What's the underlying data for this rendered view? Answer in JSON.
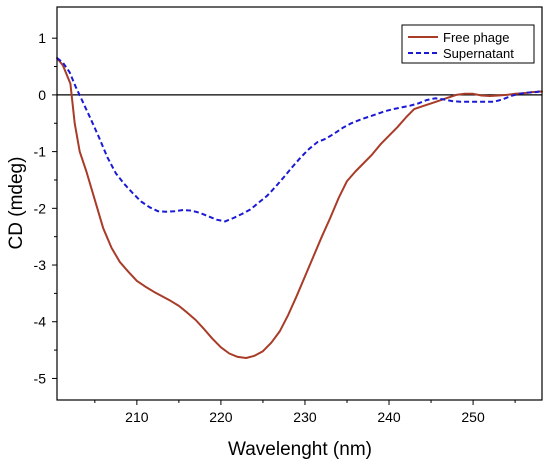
{
  "chart_data": {
    "type": "line",
    "xlabel": "Wavelenght (nm)",
    "ylabel": "CD (mdeg)",
    "xlim": [
      200.5,
      258.2
    ],
    "ylim": [
      -5.38,
      1.55
    ],
    "x_ticks": [
      210,
      220,
      230,
      240,
      250
    ],
    "y_ticks": [
      1,
      0,
      -1,
      -2,
      -3,
      -4,
      -5
    ],
    "zero_line": true,
    "grid": false,
    "legend": {
      "placement": "top-right",
      "entries": [
        "Free phage",
        "Supernatant"
      ]
    },
    "series": [
      {
        "name": "Free phage",
        "color": "#a83c28",
        "style": "solid",
        "points": [
          [
            200.5,
            0.65
          ],
          [
            201.2,
            0.52
          ],
          [
            202.1,
            0.2
          ],
          [
            202.6,
            -0.5
          ],
          [
            203.2,
            -1.0
          ],
          [
            204.0,
            -1.35
          ],
          [
            205.0,
            -1.85
          ],
          [
            206.0,
            -2.35
          ],
          [
            207.0,
            -2.7
          ],
          [
            208.0,
            -2.95
          ],
          [
            209.0,
            -3.12
          ],
          [
            210.0,
            -3.28
          ],
          [
            211.0,
            -3.38
          ],
          [
            212.0,
            -3.47
          ],
          [
            213.0,
            -3.55
          ],
          [
            214.0,
            -3.63
          ],
          [
            215.0,
            -3.72
          ],
          [
            216.0,
            -3.84
          ],
          [
            217.0,
            -3.97
          ],
          [
            218.0,
            -4.13
          ],
          [
            219.0,
            -4.3
          ],
          [
            220.0,
            -4.45
          ],
          [
            221.0,
            -4.56
          ],
          [
            222.0,
            -4.62
          ],
          [
            223.0,
            -4.64
          ],
          [
            224.0,
            -4.6
          ],
          [
            225.0,
            -4.52
          ],
          [
            226.0,
            -4.37
          ],
          [
            227.0,
            -4.17
          ],
          [
            228.0,
            -3.88
          ],
          [
            229.0,
            -3.55
          ],
          [
            230.0,
            -3.2
          ],
          [
            231.0,
            -2.85
          ],
          [
            232.0,
            -2.5
          ],
          [
            233.0,
            -2.17
          ],
          [
            234.0,
            -1.82
          ],
          [
            235.0,
            -1.52
          ],
          [
            236.0,
            -1.35
          ],
          [
            237.0,
            -1.2
          ],
          [
            238.0,
            -1.05
          ],
          [
            239.0,
            -0.87
          ],
          [
            240.0,
            -0.72
          ],
          [
            241.0,
            -0.57
          ],
          [
            242.0,
            -0.4
          ],
          [
            243.0,
            -0.25
          ],
          [
            244.0,
            -0.2
          ],
          [
            245.0,
            -0.15
          ],
          [
            246.0,
            -0.1
          ],
          [
            247.0,
            -0.05
          ],
          [
            248.0,
            0.0
          ],
          [
            249.0,
            0.02
          ],
          [
            250.0,
            0.02
          ],
          [
            251.0,
            -0.01
          ],
          [
            252.0,
            -0.02
          ],
          [
            253.0,
            -0.01
          ],
          [
            254.0,
            0.0
          ],
          [
            255.0,
            0.02
          ],
          [
            256.0,
            0.03
          ],
          [
            257.0,
            0.05
          ],
          [
            258.2,
            0.06
          ]
        ]
      },
      {
        "name": "Supernatant",
        "color": "#1a1ad6",
        "style": "dashed",
        "points": [
          [
            200.5,
            0.65
          ],
          [
            201.2,
            0.57
          ],
          [
            202.0,
            0.4
          ],
          [
            202.7,
            0.15
          ],
          [
            203.5,
            -0.1
          ],
          [
            204.5,
            -0.42
          ],
          [
            205.5,
            -0.75
          ],
          [
            206.5,
            -1.1
          ],
          [
            207.5,
            -1.38
          ],
          [
            208.5,
            -1.57
          ],
          [
            209.5,
            -1.73
          ],
          [
            210.5,
            -1.88
          ],
          [
            211.5,
            -1.98
          ],
          [
            212.5,
            -2.05
          ],
          [
            213.5,
            -2.06
          ],
          [
            214.5,
            -2.05
          ],
          [
            215.5,
            -2.03
          ],
          [
            216.5,
            -2.04
          ],
          [
            217.5,
            -2.08
          ],
          [
            218.5,
            -2.14
          ],
          [
            219.5,
            -2.2
          ],
          [
            220.5,
            -2.23
          ],
          [
            221.5,
            -2.17
          ],
          [
            222.5,
            -2.1
          ],
          [
            223.5,
            -2.02
          ],
          [
            224.5,
            -1.9
          ],
          [
            225.5,
            -1.78
          ],
          [
            226.5,
            -1.62
          ],
          [
            227.5,
            -1.45
          ],
          [
            228.5,
            -1.27
          ],
          [
            229.5,
            -1.1
          ],
          [
            230.5,
            -0.95
          ],
          [
            231.5,
            -0.83
          ],
          [
            232.5,
            -0.77
          ],
          [
            233.5,
            -0.68
          ],
          [
            234.5,
            -0.58
          ],
          [
            235.5,
            -0.5
          ],
          [
            236.5,
            -0.44
          ],
          [
            237.5,
            -0.39
          ],
          [
            238.5,
            -0.34
          ],
          [
            239.5,
            -0.29
          ],
          [
            240.5,
            -0.25
          ],
          [
            241.5,
            -0.22
          ],
          [
            242.5,
            -0.19
          ],
          [
            243.5,
            -0.15
          ],
          [
            244.5,
            -0.09
          ],
          [
            245.5,
            -0.06
          ],
          [
            246.5,
            -0.08
          ],
          [
            247.5,
            -0.11
          ],
          [
            248.5,
            -0.12
          ],
          [
            249.5,
            -0.12
          ],
          [
            250.5,
            -0.12
          ],
          [
            251.5,
            -0.12
          ],
          [
            252.5,
            -0.12
          ],
          [
            253.5,
            -0.08
          ],
          [
            254.5,
            -0.02
          ],
          [
            255.5,
            0.02
          ],
          [
            256.5,
            0.04
          ],
          [
            257.5,
            0.05
          ],
          [
            258.2,
            0.07
          ]
        ]
      }
    ]
  }
}
